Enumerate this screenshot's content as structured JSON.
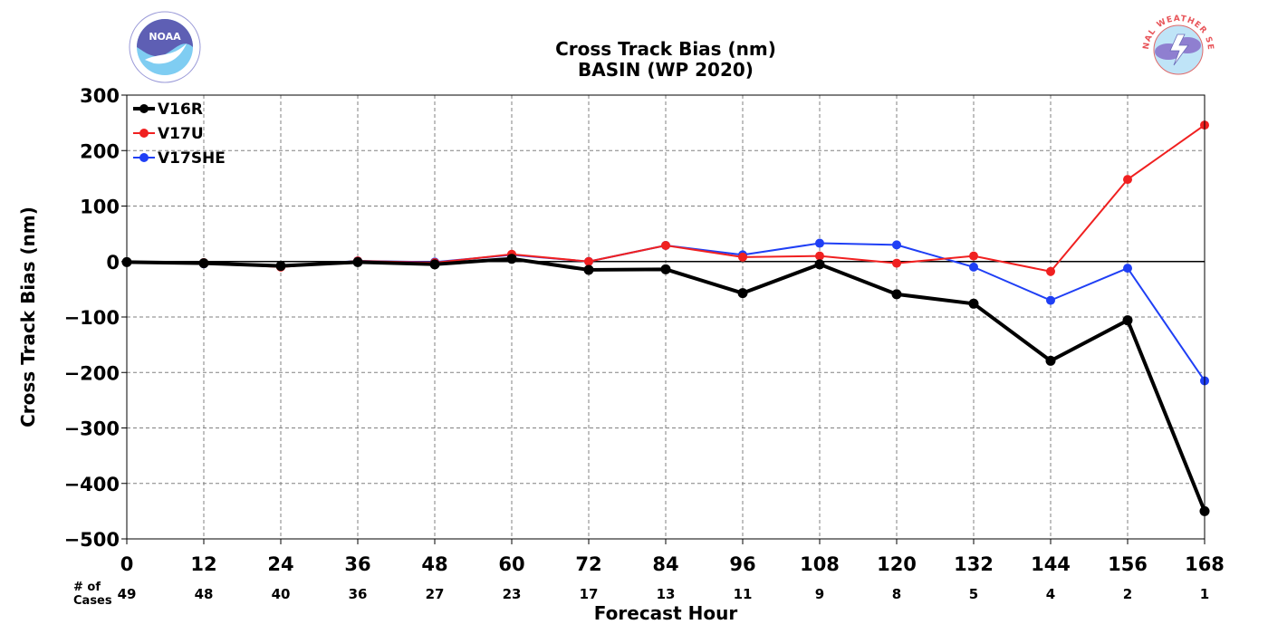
{
  "chart_data": {
    "type": "line",
    "title": "Cross Track Bias (nm)",
    "subtitle": "BASIN (WP 2020)",
    "xlabel": "Forecast Hour",
    "ylabel": "Cross Track Bias (nm)",
    "x": [
      0,
      12,
      24,
      36,
      48,
      60,
      72,
      84,
      96,
      108,
      120,
      132,
      144,
      156,
      168
    ],
    "xlim": [
      0,
      168
    ],
    "ylim": [
      -500,
      300
    ],
    "yticks": [
      -500,
      -400,
      -300,
      -200,
      -100,
      0,
      100,
      200,
      300
    ],
    "ytick_labels": [
      "−500",
      "−400",
      "−300",
      "−200",
      "−100",
      "0",
      "100",
      "200",
      "300"
    ],
    "grid": true,
    "legend_position": "top-left",
    "cases_label": "# of\nCases",
    "cases": [
      49,
      48,
      40,
      36,
      27,
      23,
      17,
      13,
      11,
      9,
      8,
      5,
      4,
      2,
      1
    ],
    "series": [
      {
        "name": "V17SHE",
        "color": "#1f3ff5",
        "width": 2,
        "values": [
          -1,
          -4,
          -8,
          1,
          -1,
          12,
          0,
          29,
          12,
          33,
          30,
          -10,
          -70,
          -12,
          -215
        ]
      },
      {
        "name": "V17U",
        "color": "#f02020",
        "width": 2,
        "values": [
          -1,
          -2,
          -10,
          1,
          -2,
          13,
          0,
          29,
          8,
          10,
          -3,
          10,
          -18,
          148,
          246
        ]
      },
      {
        "name": "V16R",
        "color": "#000000",
        "width": 4,
        "values": [
          -1,
          -3,
          -8,
          -1,
          -5,
          5,
          -15,
          -14,
          -57,
          -5,
          -59,
          -76,
          -179,
          -106,
          -450
        ]
      }
    ],
    "legend_order": [
      "V16R",
      "V17U",
      "V17SHE"
    ]
  },
  "logos": {
    "left": {
      "icon": "noaa-logo",
      "text": "NOAA"
    },
    "right": {
      "icon": "national-weather-service-logo",
      "text": "NATIONAL WEATHER SERVICE"
    }
  }
}
